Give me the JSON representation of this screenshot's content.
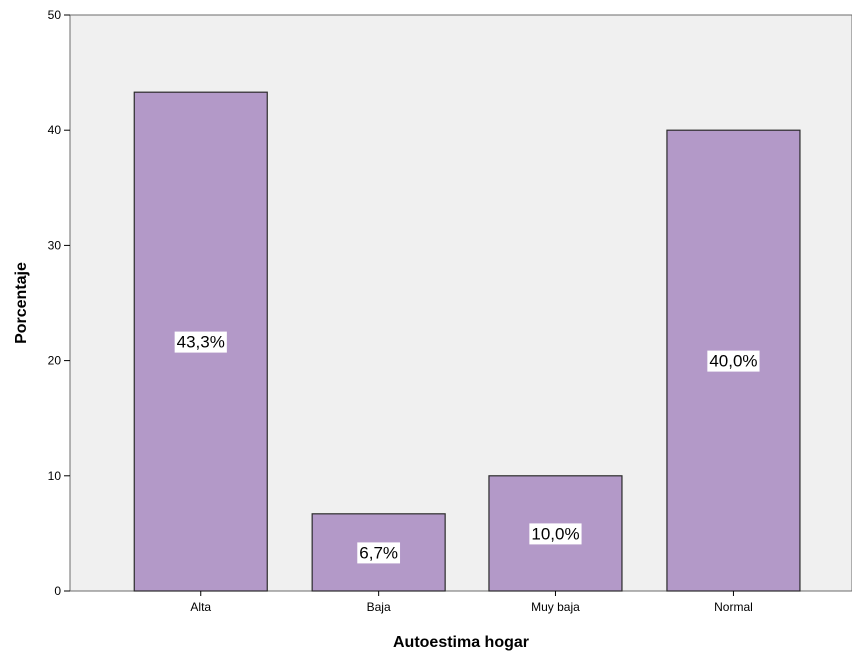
{
  "chart_data": {
    "type": "bar",
    "title": "",
    "xlabel": "Autoestima hogar",
    "ylabel": "Porcentaje",
    "categories": [
      "Alta",
      "Baja",
      "Muy baja",
      "Normal"
    ],
    "values": [
      43.3,
      6.7,
      10.0,
      40.0
    ],
    "data_labels": [
      "43,3%",
      "6,7%",
      "10,0%",
      "40,0%"
    ],
    "ylim": [
      0,
      50
    ],
    "yticks": [
      0,
      10,
      20,
      30,
      40,
      50
    ],
    "ytick_labels": [
      "0",
      "10",
      "20",
      "30",
      "40",
      "50"
    ],
    "grid": false,
    "legend": "none",
    "colors": {
      "bar_fill": "#B399C8",
      "bar_stroke": "#2b2b2b",
      "plot_background": "#F0F0F0",
      "label_background": "#FFFFFF"
    }
  }
}
